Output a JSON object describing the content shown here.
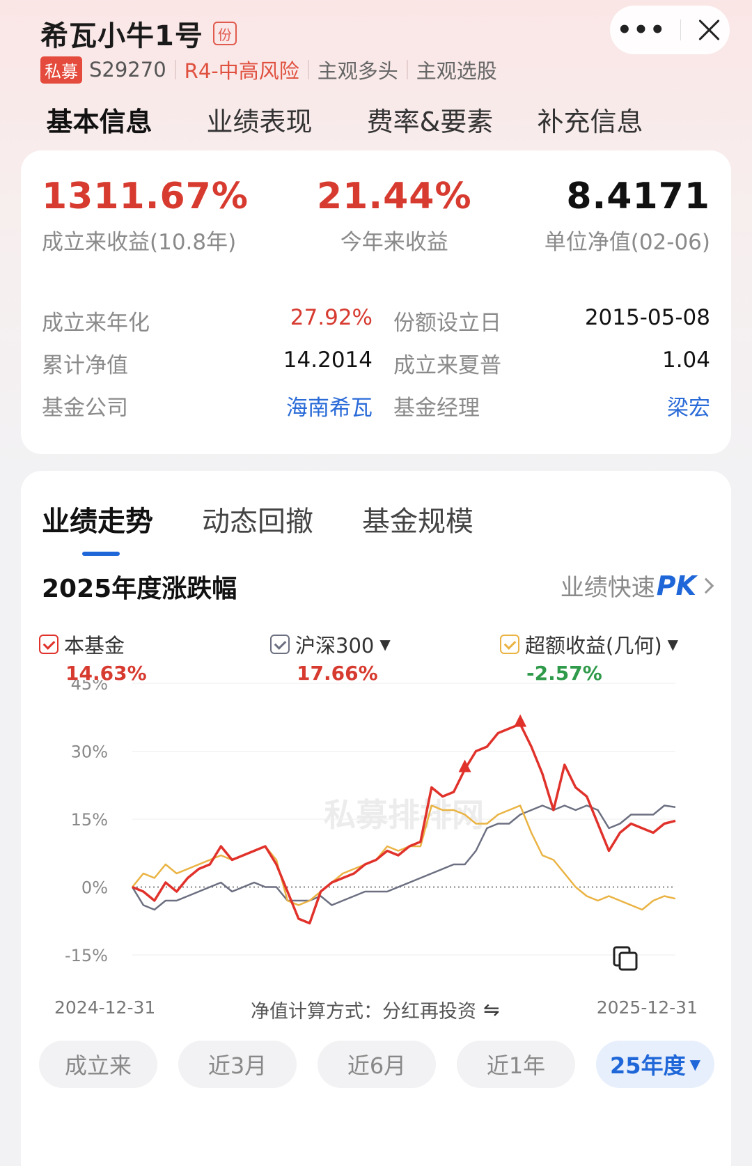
{
  "header": {
    "fund_name": "希瓦小牛1号",
    "badge": "份",
    "tag_private": "私募",
    "code": "S29270",
    "risk": "R4-中高风险",
    "strategy": "主观多头",
    "style": "主观选股",
    "more_label": "•••"
  },
  "main_tabs": [
    {
      "label": "基本信息"
    },
    {
      "label": "业绩表现"
    },
    {
      "label": "费率&要素"
    },
    {
      "label": "补充信息"
    }
  ],
  "kpis": {
    "since_inception_value": "1311.67%",
    "since_inception_label": "成立来收益(10.8年)",
    "ytd_value": "21.44%",
    "ytd_label": "今年来收益",
    "nav_value": "8.4171",
    "nav_label": "单位净值(02-06)"
  },
  "info": {
    "annualized_label": "成立来年化",
    "annualized_value": "27.92%",
    "share_date_label": "份额设立日",
    "share_date_value": "2015-05-08",
    "cum_nav_label": "累计净值",
    "cum_nav_value": "14.2014",
    "sharpe_label": "成立来夏普",
    "sharpe_value": "1.04",
    "company_label": "基金公司",
    "company_value": "海南希瓦",
    "manager_label": "基金经理",
    "manager_value": "梁宏"
  },
  "sub_tabs": [
    {
      "label": "业绩走势"
    },
    {
      "label": "动态回撤"
    },
    {
      "label": "基金规模"
    }
  ],
  "chart_section": {
    "title": "2025年度涨跌幅",
    "pk_prefix": "业绩快速",
    "pk_strong": "PK",
    "calc_label": "净值计算方式：分红再投资",
    "watermark": "私募排排网"
  },
  "legend": [
    {
      "name": "本基金",
      "value": "14.63%",
      "color": "#e0322b",
      "value_color": "#d73a2f"
    },
    {
      "name": "沪深300",
      "value": "17.66%",
      "color": "#6b6f80",
      "value_color": "#d73a2f"
    },
    {
      "name": "超额收益(几何)",
      "value": "-2.57%",
      "color": "#eab343",
      "value_color": "#2f9a4a"
    }
  ],
  "range_buttons": [
    {
      "label": "成立来"
    },
    {
      "label": "近3月"
    },
    {
      "label": "近6月"
    },
    {
      "label": "近1年"
    },
    {
      "label": "25年度"
    }
  ],
  "chart_data": {
    "type": "line",
    "title": "2025年度涨跌幅",
    "x_start": "2024-12-31",
    "x_end": "2025-12-31",
    "y_ticks": [
      "45%",
      "30%",
      "15%",
      "0%",
      "-15%"
    ],
    "ylim": [
      -15,
      45
    ],
    "grid": true,
    "series": [
      {
        "name": "本基金",
        "values": [
          0,
          -1,
          -3,
          1,
          -1,
          2,
          4,
          5,
          9,
          6,
          7,
          8,
          9,
          5,
          -1,
          -7,
          -8,
          -1,
          1,
          2,
          3,
          5,
          6,
          8,
          7,
          9,
          10,
          22,
          20,
          21,
          26,
          30,
          31,
          34,
          35,
          36,
          31,
          25,
          17,
          27,
          22,
          20,
          14,
          8,
          12,
          14,
          13,
          12,
          14,
          14.63
        ]
      },
      {
        "name": "沪深300",
        "values": [
          0,
          -4,
          -5,
          -3,
          -3,
          -2,
          -1,
          0,
          1,
          -1,
          0,
          1,
          0,
          0,
          -3,
          -3,
          -3,
          -2,
          -4,
          -3,
          -2,
          -1,
          -1,
          -1,
          0,
          1,
          2,
          3,
          4,
          5,
          5,
          8,
          13,
          14,
          14,
          16,
          17,
          18,
          17,
          18,
          17,
          18,
          17,
          13,
          14,
          16,
          16,
          16,
          18,
          17.66
        ]
      },
      {
        "name": "超额收益(几何)",
        "values": [
          0,
          3,
          2,
          5,
          3,
          4,
          5,
          6,
          7,
          6,
          7,
          8,
          9,
          6,
          -3,
          -4,
          -3,
          -1,
          1,
          3,
          4,
          5,
          6,
          9,
          8,
          9,
          9,
          18,
          17,
          17,
          16,
          14,
          14,
          16,
          17,
          18,
          12,
          7,
          6,
          3,
          0,
          -2,
          -3,
          -2,
          -3,
          -4,
          -5,
          -3,
          -2,
          -2.57
        ]
      }
    ],
    "markers": [
      {
        "series": "本基金",
        "index": 30
      },
      {
        "series": "本基金",
        "index": 35
      }
    ]
  }
}
